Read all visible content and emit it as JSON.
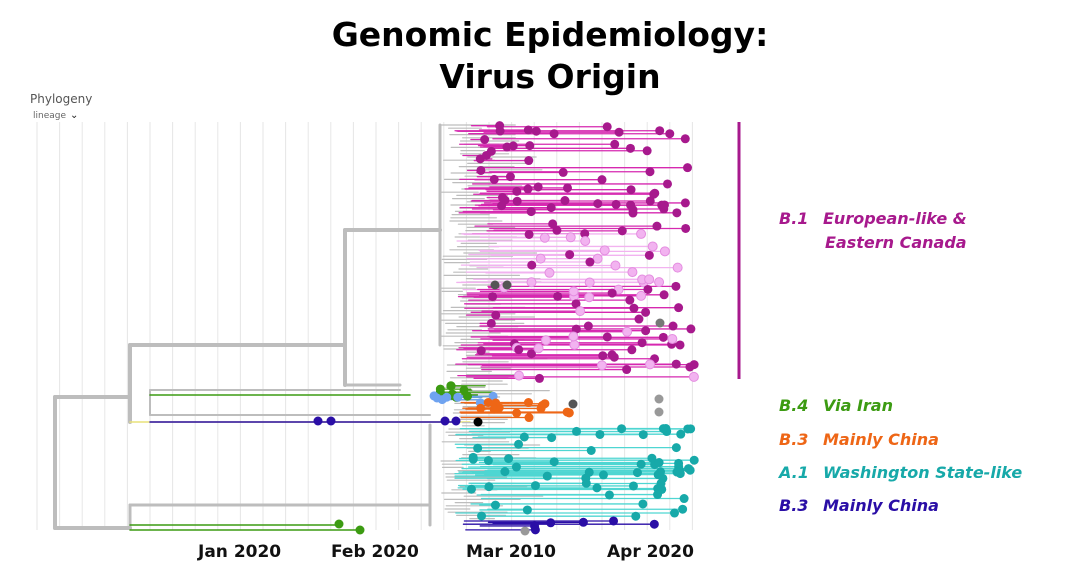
{
  "title": {
    "line1": "Genomic Epidemiology:",
    "line2": "Virus Origin"
  },
  "panel": {
    "label": "Phylogeny",
    "color_by": "lineage"
  },
  "x_axis_labels": [
    "Jan 2020",
    "Feb 2020",
    "Mar 2010",
    "Apr 2020"
  ],
  "legend": [
    {
      "code": "B.1",
      "name": "European-like &",
      "name2": "Eastern Canada",
      "color": "#a7198d"
    },
    {
      "code": "B.4",
      "name": "Via Iran",
      "color": "#3c9b12"
    },
    {
      "code": "B.3",
      "name": "Mainly China",
      "color": "#ee6616"
    },
    {
      "code": "A.1",
      "name": "Washington State-like",
      "color": "#17a9a9"
    },
    {
      "code": "B.3",
      "name": "Mainly China",
      "color": "#2a0ea6"
    }
  ],
  "colors": {
    "b1_dark": "#a7198d",
    "b1_branch": "#d629b0",
    "b1_light": "#f2b3f0",
    "b4": "#3c9b12",
    "b3": "#ee6616",
    "a1": "#17a9a9",
    "a1_light": "#4fd6d2",
    "b3_blue": "#2a0ea6",
    "light_blue": "#6fa3f0",
    "grey": "#bdbdbd",
    "dark_grey": "#555555"
  }
}
